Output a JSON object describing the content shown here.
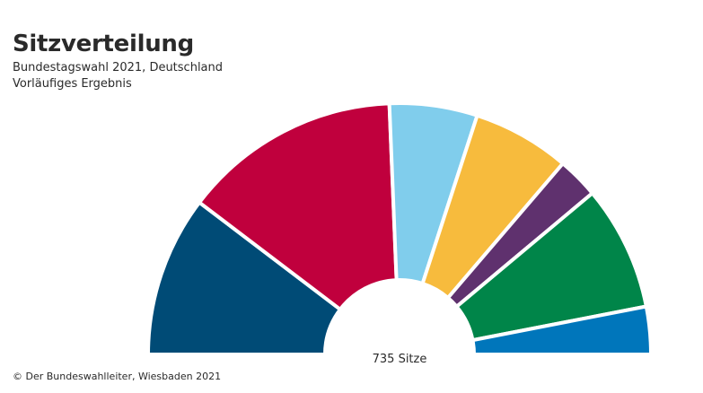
{
  "title": "Sitzverteilung",
  "subtitle_lines": [
    "Bundestagswahl 2021, Deutschland",
    "Vorläufiges Ergebnis"
  ],
  "footer": "© Der Bundeswahlleiter, Wiesbaden 2021",
  "chart_data": {
    "type": "pie",
    "variant": "parliament-semicircle",
    "center_label": "735 Sitze",
    "total": 735,
    "slices": [
      {
        "value": 152,
        "color": "#004B76"
      },
      {
        "value": 206,
        "color": "#C0003D"
      },
      {
        "value": 83,
        "color": "#80CDEC"
      },
      {
        "value": 92,
        "color": "#F7BB3D"
      },
      {
        "value": 39,
        "color": "#5F316E"
      },
      {
        "value": 118,
        "color": "#008549"
      },
      {
        "value": 45,
        "color": "#0076BB"
      }
    ]
  }
}
